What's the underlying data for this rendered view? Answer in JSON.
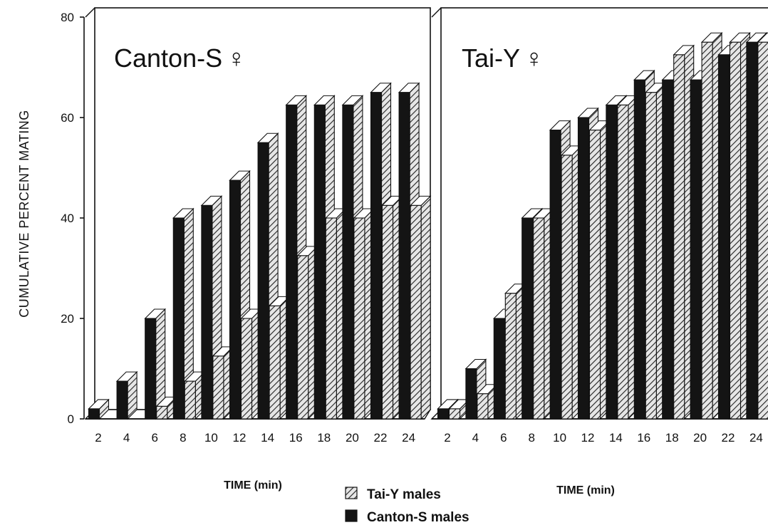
{
  "colors": {
    "canton_bar": "#141414",
    "taiy_bar": "#d8d8d8",
    "hatch": "#222222",
    "axis": "#111111"
  },
  "chart_data": {
    "type": "bar",
    "ylabel": "CUMULATIVE PERCENT MATING",
    "ylim": [
      0,
      80
    ],
    "yticks": [
      "0",
      "20",
      "40",
      "60",
      "80"
    ],
    "grid": false,
    "legend": {
      "placement": "bottom-center",
      "items": [
        {
          "label": "Tai-Y males",
          "pattern": "hatched"
        },
        {
          "label": "Canton-S males",
          "pattern": "solid-black"
        }
      ]
    },
    "panels": [
      {
        "title": "Canton-S",
        "title_symbol": "♀",
        "xlabel": "TIME  (min)",
        "categories": [
          "2",
          "4",
          "6",
          "8",
          "10",
          "12",
          "14",
          "16",
          "18",
          "20",
          "22",
          "24"
        ],
        "series": [
          {
            "name": "Canton-S males",
            "values": [
              2,
              7.5,
              20,
              40,
              42.5,
              47.5,
              55,
              62.5,
              62.5,
              62.5,
              65,
              65
            ]
          },
          {
            "name": "Tai-Y males",
            "values": [
              0,
              0,
              2.5,
              7.5,
              12.5,
              20,
              22.5,
              32.5,
              40,
              40,
              42.5,
              42.5
            ]
          }
        ]
      },
      {
        "title": "Tai-Y",
        "title_symbol": "♀",
        "xlabel": "TIME (min)",
        "categories": [
          "2",
          "4",
          "6",
          "8",
          "10",
          "12",
          "14",
          "16",
          "18",
          "20",
          "22",
          "24"
        ],
        "series": [
          {
            "name": "Canton-S males",
            "values": [
              2,
              10,
              20,
              40,
              57.5,
              60,
              62.5,
              67.5,
              67.5,
              67.5,
              72.5,
              75
            ]
          },
          {
            "name": "Tai-Y males",
            "values": [
              2,
              5,
              25,
              40,
              52.5,
              57.5,
              62.5,
              65,
              72.5,
              75,
              75,
              75
            ]
          }
        ]
      }
    ]
  }
}
